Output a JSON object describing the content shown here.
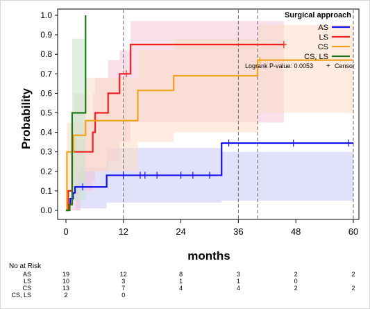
{
  "chart_data": {
    "type": "line",
    "xlabel": "months",
    "ylabel": "Probability",
    "xlim": [
      0,
      60
    ],
    "ylim": [
      0,
      1
    ],
    "xticks": [
      0,
      12,
      24,
      36,
      48,
      60
    ],
    "yticks": [
      0.0,
      0.1,
      0.2,
      0.3,
      0.4,
      0.5,
      0.6,
      0.7,
      0.8,
      0.9,
      1.0
    ],
    "vlines": [
      12,
      36,
      40,
      60
    ],
    "legend": {
      "title": "Surgical approach",
      "position": "top-right",
      "pvalue": "Logrank P-value: 0.0053",
      "censor_label": "Censor",
      "censor_symbol": "+"
    },
    "series": [
      {
        "name": "AS",
        "color": "#1010ee",
        "band_color": "#c8c8f4",
        "steps": [
          [
            0,
            0
          ],
          [
            0.6,
            0.03
          ],
          [
            0.9,
            0.06
          ],
          [
            1.5,
            0.09
          ],
          [
            1.9,
            0.12
          ],
          [
            8.5,
            0.12
          ],
          [
            8.5,
            0.18
          ],
          [
            32.5,
            0.18
          ],
          [
            32.5,
            0.345
          ],
          [
            60,
            0.345
          ]
        ],
        "band": [
          [
            0,
            0,
            0
          ],
          [
            2,
            0,
            0.2
          ],
          [
            3,
            0.01,
            0.22
          ],
          [
            8.5,
            0.04,
            0.32
          ],
          [
            32.5,
            0.05,
            0.3
          ],
          [
            60,
            0.05,
            0.6
          ]
        ],
        "censors": [
          [
            3.5,
            0.12
          ],
          [
            12,
            0.18
          ],
          [
            15.5,
            0.18
          ],
          [
            16.5,
            0.18
          ],
          [
            19,
            0.18
          ],
          [
            24,
            0.18
          ],
          [
            26.5,
            0.18
          ],
          [
            30,
            0.18
          ],
          [
            34,
            0.345
          ],
          [
            47.5,
            0.345
          ],
          [
            59,
            0.345
          ]
        ]
      },
      {
        "name": "LS",
        "color": "#ee1f1f",
        "band_color": "#f4c4d8",
        "steps": [
          [
            0,
            0
          ],
          [
            0.5,
            0.1
          ],
          [
            1.3,
            0.3
          ],
          [
            5.6,
            0.3
          ],
          [
            5.6,
            0.4
          ],
          [
            6.1,
            0.4
          ],
          [
            6.1,
            0.5
          ],
          [
            8.8,
            0.5
          ],
          [
            8.8,
            0.6
          ],
          [
            11.2,
            0.6
          ],
          [
            11.2,
            0.7
          ],
          [
            13.5,
            0.7
          ],
          [
            13.5,
            0.85
          ],
          [
            45.5,
            0.85
          ]
        ],
        "band": [
          [
            0,
            0,
            0
          ],
          [
            1,
            0,
            0.45
          ],
          [
            3,
            0.1,
            0.45
          ],
          [
            5.6,
            0.15,
            0.6
          ],
          [
            6.1,
            0.2,
            0.68
          ],
          [
            8.8,
            0.25,
            0.77
          ],
          [
            11.2,
            0.35,
            0.82
          ],
          [
            13.5,
            0.45,
            0.97
          ],
          [
            45.5,
            0.45,
            0.97
          ]
        ],
        "censors": [
          [
            12.6,
            0.7
          ],
          [
            45.5,
            0.85
          ]
        ]
      },
      {
        "name": "CS",
        "color": "#f0a21c",
        "band_color": "#fcdcc4",
        "steps": [
          [
            0,
            0
          ],
          [
            0.2,
            0.3
          ],
          [
            1.6,
            0.3
          ],
          [
            1.6,
            0.385
          ],
          [
            4.1,
            0.385
          ],
          [
            4.1,
            0.46
          ],
          [
            15,
            0.46
          ],
          [
            15,
            0.615
          ],
          [
            22.5,
            0.615
          ],
          [
            22.5,
            0.69
          ],
          [
            40,
            0.69
          ],
          [
            40,
            0.77
          ],
          [
            60,
            0.77
          ]
        ],
        "band": [
          [
            0,
            0,
            0
          ],
          [
            0.2,
            0.1,
            0.45
          ],
          [
            1.6,
            0.15,
            0.6
          ],
          [
            4.1,
            0.2,
            0.68
          ],
          [
            15,
            0.35,
            0.82
          ],
          [
            22.5,
            0.4,
            0.88
          ],
          [
            40,
            0.5,
            0.95
          ],
          [
            60,
            0.6,
            0.95
          ]
        ],
        "censors": [
          [
            40.5,
            0.77
          ]
        ]
      },
      {
        "name": "CS, LS",
        "color": "#1a7a1a",
        "band_color": "#c4e4cc",
        "steps": [
          [
            0,
            0
          ],
          [
            0.8,
            0.03
          ],
          [
            1.3,
            0.5
          ],
          [
            4.1,
            0.5
          ],
          [
            4.1,
            1.0
          ]
        ],
        "band": [
          [
            0,
            0,
            0
          ],
          [
            1.3,
            0.05,
            0.88
          ],
          [
            4.1,
            0.05,
            0.88
          ]
        ],
        "censors": []
      }
    ]
  },
  "at_risk": {
    "title": "No at Risk",
    "times": [
      0,
      12,
      24,
      36,
      48,
      60
    ],
    "rows": [
      {
        "group": "AS",
        "counts": [
          "19",
          "12",
          "8",
          "3",
          "2",
          "2"
        ]
      },
      {
        "group": "LS",
        "counts": [
          "10",
          "3",
          "1",
          "1",
          "0",
          ""
        ]
      },
      {
        "group": "CS",
        "counts": [
          "13",
          "7",
          "4",
          "4",
          "2",
          "2"
        ]
      },
      {
        "group": "CS, LS",
        "counts": [
          "2",
          "0",
          "",
          "",
          "",
          ""
        ]
      }
    ]
  }
}
